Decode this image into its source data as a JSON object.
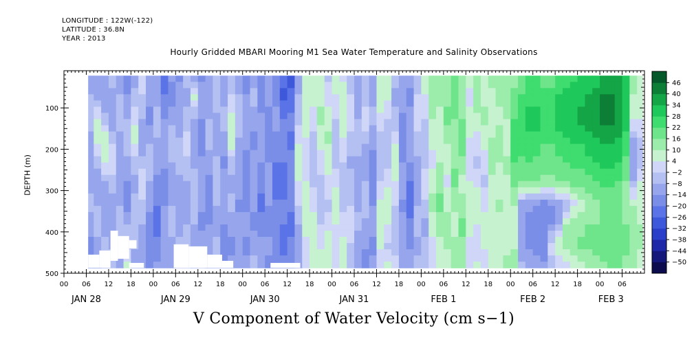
{
  "header": {
    "longitude": "LONGITUDE : 122W(-122)",
    "latitude": "LATITUDE : 36.8N",
    "year": "YEAR : 2013"
  },
  "chart_data": {
    "type": "heatmap",
    "title": "Hourly Gridded MBARI Mooring M1 Sea Water Temperature and Salinity Observations",
    "xlabel": "V Component of Water Velocity (cm s−1)",
    "ylabel": "DEPTH (m)",
    "x_start_hour": 0,
    "x_end_hour": 156,
    "hour_tick_labels": [
      "00",
      "06",
      "12",
      "18",
      "00",
      "06",
      "12",
      "18",
      "00",
      "06",
      "12",
      "18",
      "00",
      "06",
      "12",
      "18",
      "00",
      "06",
      "12",
      "18",
      "00",
      "06",
      "12",
      "18",
      "00",
      "06"
    ],
    "day_labels": [
      {
        "text": "JAN 28",
        "hour": 6
      },
      {
        "text": "JAN 29",
        "hour": 30
      },
      {
        "text": "JAN 30",
        "hour": 54
      },
      {
        "text": "JAN 31",
        "hour": 78
      },
      {
        "text": "FEB  1",
        "hour": 102
      },
      {
        "text": "FEB  2",
        "hour": 126
      },
      {
        "text": "FEB  3",
        "hour": 147
      }
    ],
    "ylim": [
      500,
      10
    ],
    "y_ticks": [
      100,
      200,
      300,
      400,
      500
    ],
    "data_x_range_hours": [
      6.5,
      155.5
    ],
    "data_depth_range": [
      22,
      487
    ],
    "colorbar": {
      "levels": [
        -50,
        -44,
        -38,
        -32,
        -26,
        -20,
        -14,
        -8,
        -2,
        4,
        10,
        16,
        22,
        28,
        34,
        40,
        46
      ],
      "colors": [
        "#0b0b4e",
        "#14187a",
        "#1c28a8",
        "#2a3fc9",
        "#3e58dc",
        "#5a73e6",
        "#7a8ee8",
        "#97a6ec",
        "#b4bff2",
        "#cfd6f7",
        "#c7f2cf",
        "#9cecab",
        "#6ee58b",
        "#3fdc6f",
        "#1fc85a",
        "#14a547",
        "#0c7e36",
        "#05582a"
      ]
    },
    "columns": [
      {
        "hour": 7,
        "v": [
          -12,
          -8,
          -5,
          -10,
          -14,
          -10,
          -6,
          -12,
          -16,
          -18
        ]
      },
      {
        "hour": 9,
        "v": [
          -14,
          -10,
          4,
          8,
          -6,
          -12,
          -8,
          -4,
          -10,
          -16
        ]
      },
      {
        "hour": 11,
        "v": [
          -10,
          -14,
          -6,
          10,
          6,
          -8,
          -14,
          -12,
          -6,
          -10
        ]
      },
      {
        "hour": 13,
        "v": [
          -6,
          -10,
          -12,
          -4,
          2,
          -6,
          -10,
          -14,
          -8,
          -4
        ]
      },
      {
        "hour": 15,
        "v": [
          -14,
          -8,
          -4,
          -10,
          -8,
          -12,
          -8,
          -4,
          -10,
          -14
        ]
      },
      {
        "hour": 17,
        "v": [
          -18,
          -14,
          -8,
          -4,
          -10,
          -14,
          -16,
          -8,
          -4,
          8
        ]
      },
      {
        "hour": 19,
        "v": [
          -10,
          -6,
          2,
          8,
          -4,
          -10,
          -6,
          -2,
          -8,
          -12
        ]
      },
      {
        "hour": 21,
        "v": [
          4,
          -2,
          -8,
          -12,
          -6,
          2,
          -4,
          -8,
          -12,
          -10
        ]
      },
      {
        "hour": 23,
        "v": [
          -8,
          -12,
          -16,
          -10,
          -4,
          -8,
          -12,
          -16,
          -20,
          -14
        ]
      },
      {
        "hour": 25,
        "v": [
          -14,
          -10,
          -4,
          -8,
          -12,
          -16,
          -20,
          -24,
          -18,
          -12
        ]
      },
      {
        "hour": 27,
        "v": [
          -26,
          -20,
          -14,
          -8,
          -12,
          -18,
          -14,
          -10,
          -14,
          -10
        ]
      },
      {
        "hour": 29,
        "v": [
          -12,
          -18,
          -10,
          -4,
          -8,
          -12,
          -8,
          -6,
          -10,
          -8
        ]
      },
      {
        "hour": 31,
        "v": [
          -16,
          -10,
          -14,
          -8,
          -4,
          -10,
          -14,
          -10,
          -6,
          -4
        ]
      },
      {
        "hour": 33,
        "v": [
          -4,
          -10,
          -6,
          2,
          -4,
          -8,
          -12,
          -8,
          -4,
          -8
        ]
      },
      {
        "hour": 35,
        "v": [
          -12,
          6,
          -8,
          -14,
          -10,
          -6,
          -2,
          -8,
          -12,
          -10
        ]
      },
      {
        "hour": 37,
        "v": [
          -16,
          -10,
          -14,
          -18,
          -12,
          -8,
          -12,
          -16,
          -10,
          -6
        ]
      },
      {
        "hour": 39,
        "v": [
          -10,
          -14,
          -8,
          -4,
          -12,
          -16,
          -20,
          -14,
          -10,
          -12
        ]
      },
      {
        "hour": 41,
        "v": [
          -8,
          -4,
          -10,
          -14,
          -6,
          -2,
          -8,
          -12,
          -6,
          -10
        ]
      },
      {
        "hour": 43,
        "v": [
          -14,
          -10,
          -6,
          -10,
          -16,
          -12,
          -8,
          -14,
          -18,
          -12
        ]
      },
      {
        "hour": 45,
        "v": [
          -6,
          -2,
          6,
          10,
          -4,
          -10,
          -6,
          -12,
          -16,
          -10
        ]
      },
      {
        "hour": 47,
        "v": [
          -12,
          -8,
          -4,
          -8,
          -14,
          -10,
          -16,
          -12,
          -8,
          -14
        ]
      },
      {
        "hour": 49,
        "v": [
          -18,
          -14,
          -8,
          -12,
          -16,
          -20,
          -16,
          -12,
          -16,
          -10
        ]
      },
      {
        "hour": 51,
        "v": [
          -10,
          -6,
          -12,
          -16,
          -12,
          -8,
          -12,
          -16,
          -10,
          -6
        ]
      },
      {
        "hour": 53,
        "v": [
          -14,
          -18,
          -12,
          -8,
          -14,
          -18,
          -22,
          -16,
          -12,
          -14
        ]
      },
      {
        "hour": 55,
        "v": [
          -8,
          -12,
          -16,
          -20,
          -14,
          -10,
          -14,
          -18,
          -12,
          -16
        ]
      },
      {
        "hour": 57,
        "v": [
          -20,
          -16,
          -12,
          -16,
          -20,
          -24,
          -18,
          -14,
          -18,
          -20
        ]
      },
      {
        "hour": 59,
        "v": [
          -24,
          -28,
          -20,
          -16,
          -20,
          -24,
          -18,
          -20,
          -22,
          -18
        ]
      },
      {
        "hour": 61,
        "v": [
          -28,
          -24,
          -18,
          -22,
          -18,
          -14,
          -18,
          -22,
          -18,
          -16
        ]
      },
      {
        "hour": 63,
        "v": [
          -12,
          -8,
          -4,
          2,
          8,
          4,
          -2,
          -8,
          -12,
          -10
        ]
      },
      {
        "hour": 65,
        "v": [
          6,
          10,
          8,
          4,
          -2,
          4,
          8,
          6,
          2,
          4
        ]
      },
      {
        "hour": 67,
        "v": [
          10,
          6,
          2,
          -4,
          -8,
          -4,
          2,
          6,
          10,
          8
        ]
      },
      {
        "hour": 69,
        "v": [
          4,
          8,
          12,
          6,
          2,
          -4,
          -8,
          -2,
          4,
          6
        ]
      },
      {
        "hour": 71,
        "v": [
          -4,
          2,
          8,
          12,
          6,
          2,
          -4,
          2,
          8,
          10
        ]
      },
      {
        "hour": 73,
        "v": [
          8,
          4,
          -2,
          -8,
          -4,
          2,
          8,
          4,
          -2,
          2
        ]
      },
      {
        "hour": 75,
        "v": [
          2,
          8,
          10,
          4,
          -2,
          -8,
          -4,
          2,
          6,
          4
        ]
      },
      {
        "hour": 77,
        "v": [
          -6,
          -2,
          4,
          -4,
          -10,
          -6,
          -2,
          4,
          -4,
          -8
        ]
      },
      {
        "hour": 79,
        "v": [
          -10,
          -14,
          -8,
          -4,
          -10,
          -14,
          -10,
          -6,
          -12,
          -10
        ]
      },
      {
        "hour": 81,
        "v": [
          -8,
          -4,
          2,
          -6,
          -12,
          -8,
          -4,
          -10,
          -14,
          -16
        ]
      },
      {
        "hour": 83,
        "v": [
          -14,
          -10,
          -6,
          -12,
          -16,
          -20,
          -14,
          -10,
          -16,
          -12
        ]
      },
      {
        "hour": 85,
        "v": [
          4,
          8,
          2,
          -4,
          -8,
          -2,
          6,
          10,
          4,
          2
        ]
      },
      {
        "hour": 87,
        "v": [
          10,
          6,
          -2,
          -8,
          -4,
          2,
          8,
          4,
          -4,
          8
        ]
      },
      {
        "hour": 89,
        "v": [
          -4,
          -10,
          -6,
          2,
          8,
          4,
          -2,
          -8,
          -4,
          2
        ]
      },
      {
        "hour": 91,
        "v": [
          -14,
          -10,
          -16,
          -20,
          -14,
          -10,
          -16,
          -12,
          -8,
          -10
        ]
      },
      {
        "hour": 93,
        "v": [
          -10,
          -16,
          -12,
          -8,
          -14,
          -20,
          -24,
          -18,
          -14,
          -12
        ]
      },
      {
        "hour": 95,
        "v": [
          -6,
          -2,
          4,
          -4,
          -10,
          -14,
          -8,
          -4,
          -10,
          -6
        ]
      },
      {
        "hour": 97,
        "v": [
          8,
          4,
          -2,
          -8,
          -4,
          2,
          -4,
          -10,
          -6,
          -2
        ]
      },
      {
        "hour": 99,
        "v": [
          12,
          16,
          10,
          6,
          2,
          8,
          12,
          6,
          2,
          4
        ]
      },
      {
        "hour": 101,
        "v": [
          16,
          12,
          8,
          4,
          10,
          14,
          18,
          12,
          8,
          10
        ]
      },
      {
        "hour": 103,
        "v": [
          10,
          14,
          18,
          12,
          6,
          2,
          8,
          14,
          10,
          6
        ]
      },
      {
        "hour": 105,
        "v": [
          18,
          22,
          16,
          10,
          14,
          18,
          12,
          8,
          12,
          16
        ]
      },
      {
        "hour": 107,
        "v": [
          14,
          10,
          16,
          20,
          14,
          8,
          12,
          18,
          14,
          10
        ]
      },
      {
        "hour": 109,
        "v": [
          6,
          2,
          8,
          4,
          -2,
          4,
          10,
          6,
          2,
          4
        ]
      },
      {
        "hour": 111,
        "v": [
          10,
          14,
          8,
          2,
          -4,
          2,
          8,
          4,
          -2,
          6
        ]
      },
      {
        "hour": 113,
        "v": [
          4,
          8,
          12,
          6,
          2,
          -4,
          2,
          8,
          4,
          2
        ]
      },
      {
        "hour": 115,
        "v": [
          12,
          8,
          4,
          10,
          14,
          8,
          4,
          10,
          6,
          8
        ]
      },
      {
        "hour": 117,
        "v": [
          16,
          12,
          8,
          14,
          10,
          6,
          12,
          8,
          4,
          10
        ]
      },
      {
        "hour": 119,
        "v": [
          12,
          16,
          10,
          6,
          12,
          8,
          4,
          10,
          8,
          14
        ]
      },
      {
        "hour": 121,
        "v": [
          14,
          18,
          22,
          28,
          22,
          18,
          10,
          8,
          10,
          12
        ]
      },
      {
        "hour": 123,
        "v": [
          18,
          22,
          28,
          26,
          20,
          16,
          -10,
          -12,
          -14,
          -6
        ]
      },
      {
        "hour": 125,
        "v": [
          22,
          26,
          30,
          26,
          22,
          16,
          -12,
          -16,
          -14,
          -8
        ]
      },
      {
        "hour": 127,
        "v": [
          22,
          26,
          30,
          26,
          20,
          16,
          -14,
          -18,
          -16,
          -10
        ]
      },
      {
        "hour": 129,
        "v": [
          20,
          24,
          28,
          24,
          18,
          14,
          -16,
          -20,
          -18,
          -12
        ]
      },
      {
        "hour": 131,
        "v": [
          20,
          24,
          28,
          24,
          18,
          14,
          -14,
          -16,
          4,
          -8
        ]
      },
      {
        "hour": 133,
        "v": [
          22,
          28,
          32,
          26,
          20,
          16,
          -10,
          -8,
          10,
          -4
        ]
      },
      {
        "hour": 135,
        "v": [
          24,
          30,
          34,
          28,
          22,
          16,
          -6,
          10,
          14,
          -2
        ]
      },
      {
        "hour": 137,
        "v": [
          26,
          32,
          34,
          30,
          24,
          18,
          2,
          12,
          16,
          4
        ]
      },
      {
        "hour": 139,
        "v": [
          28,
          32,
          36,
          30,
          24,
          18,
          8,
          14,
          18,
          8
        ]
      },
      {
        "hour": 141,
        "v": [
          30,
          34,
          38,
          32,
          26,
          20,
          10,
          16,
          18,
          10
        ]
      },
      {
        "hour": 143,
        "v": [
          32,
          36,
          40,
          34,
          28,
          22,
          14,
          16,
          20,
          12
        ]
      },
      {
        "hour": 145,
        "v": [
          34,
          40,
          42,
          36,
          30,
          24,
          16,
          18,
          20,
          14
        ]
      },
      {
        "hour": 147,
        "v": [
          36,
          40,
          42,
          36,
          30,
          24,
          18,
          20,
          22,
          16
        ]
      },
      {
        "hour": 149,
        "v": [
          34,
          38,
          40,
          34,
          28,
          22,
          18,
          20,
          22,
          18
        ]
      },
      {
        "hour": 151,
        "v": [
          28,
          30,
          32,
          26,
          20,
          16,
          14,
          16,
          18,
          14
        ]
      },
      {
        "hour": 153,
        "v": [
          14,
          10,
          6,
          -10,
          -14,
          -8,
          10,
          12,
          14,
          10
        ]
      },
      {
        "hour": 155,
        "v": [
          6,
          8,
          4,
          -2,
          -6,
          4,
          8,
          10,
          10,
          8
        ]
      }
    ],
    "missing_regions": [
      {
        "x0": 6.5,
        "x1": 9.5,
        "d0": 455,
        "d1": 487
      },
      {
        "x0": 9.5,
        "x1": 12.5,
        "d0": 445,
        "d1": 487
      },
      {
        "x0": 12.5,
        "x1": 14.5,
        "d0": 397,
        "d1": 470
      },
      {
        "x0": 14.5,
        "x1": 17.5,
        "d0": 410,
        "d1": 465
      },
      {
        "x0": 17.5,
        "x1": 19.5,
        "d0": 420,
        "d1": 440
      },
      {
        "x0": 17.5,
        "x1": 21.5,
        "d0": 475,
        "d1": 487
      },
      {
        "x0": 29.5,
        "x1": 33.5,
        "d0": 430,
        "d1": 487
      },
      {
        "x0": 33.5,
        "x1": 38.5,
        "d0": 435,
        "d1": 487
      },
      {
        "x0": 38.5,
        "x1": 42.5,
        "d0": 455,
        "d1": 487
      },
      {
        "x0": 42.5,
        "x1": 45.5,
        "d0": 470,
        "d1": 487
      },
      {
        "x0": 55.5,
        "x1": 63.5,
        "d0": 475,
        "d1": 487
      }
    ]
  }
}
